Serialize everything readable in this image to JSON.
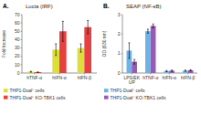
{
  "chart_data": [
    {
      "type": "bar",
      "title": "Lucia (IRF)",
      "annotation": "A.",
      "y_label": "Fold Increase",
      "categories": [
        "hTNF-α",
        "hIFN-α",
        "hIFN-β"
      ],
      "series": [
        {
          "name": "THP1-Dual⁺ cells",
          "color": "#dede3a",
          "values": [
            1.5,
            28,
            30
          ],
          "errors": [
            0.5,
            7,
            5
          ]
        },
        {
          "name": "THP1-Dual⁺ KO-TBK1 cells",
          "color": "#e84040",
          "values": [
            1.0,
            50,
            55
          ],
          "errors": [
            0.3,
            12,
            8
          ]
        }
      ],
      "ylim": [
        0,
        70
      ],
      "yticks": [
        0,
        10,
        20,
        30,
        40,
        50,
        60,
        70
      ],
      "grid": false,
      "legend": "bottom"
    },
    {
      "type": "bar",
      "title": "SEAP (NF-κB)",
      "annotation": "B.",
      "y_label": "OD (630 nm)",
      "categories": [
        "LPS/EK\nUP",
        "hTNF-α",
        "hIFN-α",
        "hIFN-β"
      ],
      "series": [
        {
          "name": "THP1-Dual⁺ cells",
          "color": "#6ab4e8",
          "values": [
            1.15,
            2.15,
            0.1,
            0.12
          ],
          "errors": [
            0.4,
            0.1,
            0.03,
            0.03
          ]
        },
        {
          "name": "THP1-Dual⁺ KO-TBK1 cells",
          "color": "#9b59b6",
          "values": [
            0.58,
            2.42,
            0.12,
            0.14
          ],
          "errors": [
            0.12,
            0.1,
            0.03,
            0.03
          ]
        }
      ],
      "ylim": [
        0,
        3
      ],
      "yticks": [
        0,
        1,
        2,
        3
      ],
      "grid": false,
      "legend": "bottom"
    }
  ]
}
